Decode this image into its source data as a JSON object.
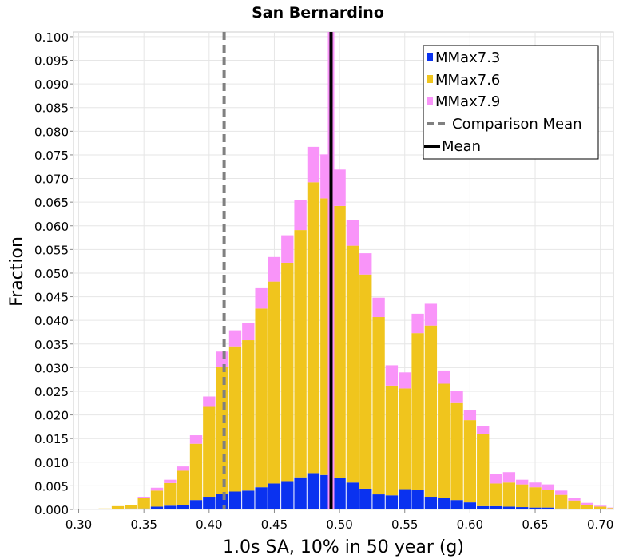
{
  "chart_data": {
    "type": "bar",
    "stacked": true,
    "title": "San Bernardino",
    "xlabel": "1.0s SA, 10% in 50 year (g)",
    "ylabel": "Fraction",
    "xlim": [
      0.296,
      0.71
    ],
    "ylim": [
      0.0,
      0.101
    ],
    "bin_width": 0.01,
    "x_ticks": [
      "0.30",
      "0.35",
      "0.40",
      "0.45",
      "0.50",
      "0.55",
      "0.60",
      "0.65",
      "0.70"
    ],
    "y_ticks": [
      "0.000",
      "0.005",
      "0.010",
      "0.015",
      "0.020",
      "0.025",
      "0.030",
      "0.035",
      "0.040",
      "0.045",
      "0.050",
      "0.055",
      "0.060",
      "0.065",
      "0.070",
      "0.075",
      "0.080",
      "0.085",
      "0.090",
      "0.095",
      "0.100"
    ],
    "bin_starts": [
      0.295,
      0.305,
      0.315,
      0.325,
      0.335,
      0.345,
      0.355,
      0.365,
      0.375,
      0.385,
      0.395,
      0.405,
      0.415,
      0.425,
      0.435,
      0.445,
      0.455,
      0.465,
      0.475,
      0.485,
      0.495,
      0.505,
      0.515,
      0.525,
      0.535,
      0.545,
      0.555,
      0.565,
      0.575,
      0.585,
      0.595,
      0.605,
      0.615,
      0.625,
      0.635,
      0.645,
      0.655,
      0.665,
      0.675,
      0.685,
      0.695,
      0.705
    ],
    "series": [
      {
        "name": "MMax7.3",
        "color": "#0a32f0",
        "values": [
          0.0,
          0.0,
          0.0,
          0.0001,
          0.0002,
          0.0002,
          0.0006,
          0.0008,
          0.001,
          0.002,
          0.0027,
          0.0033,
          0.0038,
          0.004,
          0.0047,
          0.0055,
          0.006,
          0.0068,
          0.0077,
          0.0073,
          0.0067,
          0.0057,
          0.0044,
          0.0032,
          0.003,
          0.0043,
          0.0042,
          0.0027,
          0.0025,
          0.002,
          0.0015,
          0.0007,
          0.0007,
          0.0006,
          0.0005,
          0.0004,
          0.0004,
          0.0002,
          0.0001,
          0.0,
          0.0,
          0.0
        ]
      },
      {
        "name": "MMax7.6",
        "color": "#f0c51d",
        "values": [
          0.0,
          0.0001,
          0.0002,
          0.0006,
          0.0007,
          0.0022,
          0.0034,
          0.0048,
          0.0072,
          0.0119,
          0.019,
          0.0268,
          0.0307,
          0.0318,
          0.0378,
          0.0427,
          0.0462,
          0.0523,
          0.0615,
          0.0585,
          0.0575,
          0.0501,
          0.0453,
          0.0375,
          0.0232,
          0.0213,
          0.0331,
          0.0362,
          0.0241,
          0.0205,
          0.0174,
          0.0152,
          0.0048,
          0.0051,
          0.0048,
          0.0043,
          0.0038,
          0.0029,
          0.0018,
          0.001,
          0.0006,
          0.0003
        ]
      },
      {
        "name": "MMax7.9",
        "color": "#f994f9",
        "values": [
          0.0,
          0.0,
          0.0,
          0.0,
          0.0001,
          0.0003,
          0.0006,
          0.0007,
          0.0009,
          0.0018,
          0.0022,
          0.0033,
          0.0034,
          0.0037,
          0.0043,
          0.0052,
          0.0058,
          0.0063,
          0.0075,
          0.0093,
          0.0077,
          0.0054,
          0.0045,
          0.0041,
          0.0043,
          0.0034,
          0.0041,
          0.0046,
          0.0028,
          0.0025,
          0.0021,
          0.0017,
          0.002,
          0.0022,
          0.001,
          0.001,
          0.0011,
          0.0009,
          0.0005,
          0.0004,
          0.0002,
          0.0001
        ]
      }
    ],
    "comparison_mean": 0.4115,
    "mean": 0.4935,
    "mean_color": "#000000",
    "comparison_mean_color": "#808080",
    "legend": {
      "position": "top-right",
      "entries": [
        "MMax7.3",
        "MMax7.6",
        "MMax7.9",
        "Comparison Mean",
        "Mean"
      ]
    }
  }
}
